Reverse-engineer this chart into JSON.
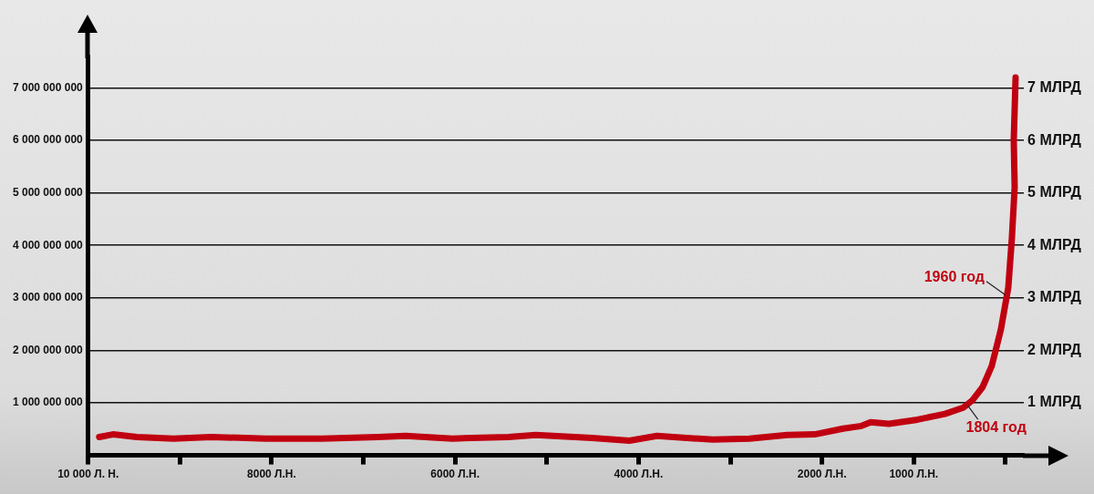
{
  "chart_data": {
    "type": "line",
    "xlim": [
      -10000,
      200
    ],
    "xticks": [
      {
        "value": -10000,
        "label": "10 000 Л. Н."
      },
      {
        "value": -9000,
        "label": null
      },
      {
        "value": -8000,
        "label": "8000 Л.Н."
      },
      {
        "value": -7000,
        "label": null
      },
      {
        "value": -6000,
        "label": "6000 Л.Н."
      },
      {
        "value": -5000,
        "label": null
      },
      {
        "value": -4000,
        "label": "4000 Л.Н."
      },
      {
        "value": -3000,
        "label": null
      },
      {
        "value": -2000,
        "label": "2000 Л.Н."
      },
      {
        "value": -1000,
        "label": "1000 Л.Н."
      },
      {
        "value": 0,
        "label": null
      }
    ],
    "ylim": [
      0,
      7600000000
    ],
    "yticks": [
      {
        "value": 1000000000,
        "label": "1 000 000 000"
      },
      {
        "value": 2000000000,
        "label": "2 000 000 000"
      },
      {
        "value": 3000000000,
        "label": "3 000 000 000"
      },
      {
        "value": 4000000000,
        "label": "4 000 000 000"
      },
      {
        "value": 5000000000,
        "label": "5 000 000 000"
      },
      {
        "value": 6000000000,
        "label": "6 000 000 000"
      },
      {
        "value": 7000000000,
        "label": "7 000 000 000"
      }
    ],
    "y2lim": [
      0,
      7.6
    ],
    "y2ticks": [
      {
        "value": 1,
        "label": "1 МЛРД"
      },
      {
        "value": 2,
        "label": "2 МЛРД"
      },
      {
        "value": 3,
        "label": "3 МЛРД"
      },
      {
        "value": 4,
        "label": "4 МЛРД"
      },
      {
        "value": 5,
        "label": "5 МЛРД"
      },
      {
        "value": 6,
        "label": "6 МЛРД"
      },
      {
        "value": 7,
        "label": "7 МЛРД"
      }
    ],
    "grid": "y",
    "legend": false,
    "marker": "none",
    "line_style": "solid",
    "series": [
      {
        "color": "#c00010",
        "x": [
          -9880,
          -9730,
          -9470,
          -9070,
          -8660,
          -8060,
          -7450,
          -6840,
          -6540,
          -6030,
          -5420,
          -5120,
          -4510,
          -4100,
          -3800,
          -3190,
          -2790,
          -2380,
          -2080,
          -1770,
          -1570,
          -1470,
          -1270,
          -960,
          -660,
          -460,
          -360,
          -250,
          -150,
          -50,
          30,
          70,
          100,
          90,
          110
        ],
        "values": [
          350000000,
          400000000,
          350000000,
          320000000,
          350000000,
          320000000,
          320000000,
          350000000,
          370000000,
          320000000,
          350000000,
          390000000,
          330000000,
          280000000,
          370000000,
          300000000,
          320000000,
          390000000,
          400000000,
          510000000,
          560000000,
          630000000,
          600000000,
          680000000,
          790000000,
          910000000,
          1050000000,
          1300000000,
          1700000000,
          2400000000,
          3190000000,
          4150000000,
          5110000000,
          6000000000,
          7200000000
        ]
      }
    ],
    "annotations": [
      {
        "text": "1960 год",
        "x": 30,
        "y": 3000000000
      },
      {
        "text": "1804 год",
        "x": -380,
        "y": 1000000000
      }
    ]
  }
}
